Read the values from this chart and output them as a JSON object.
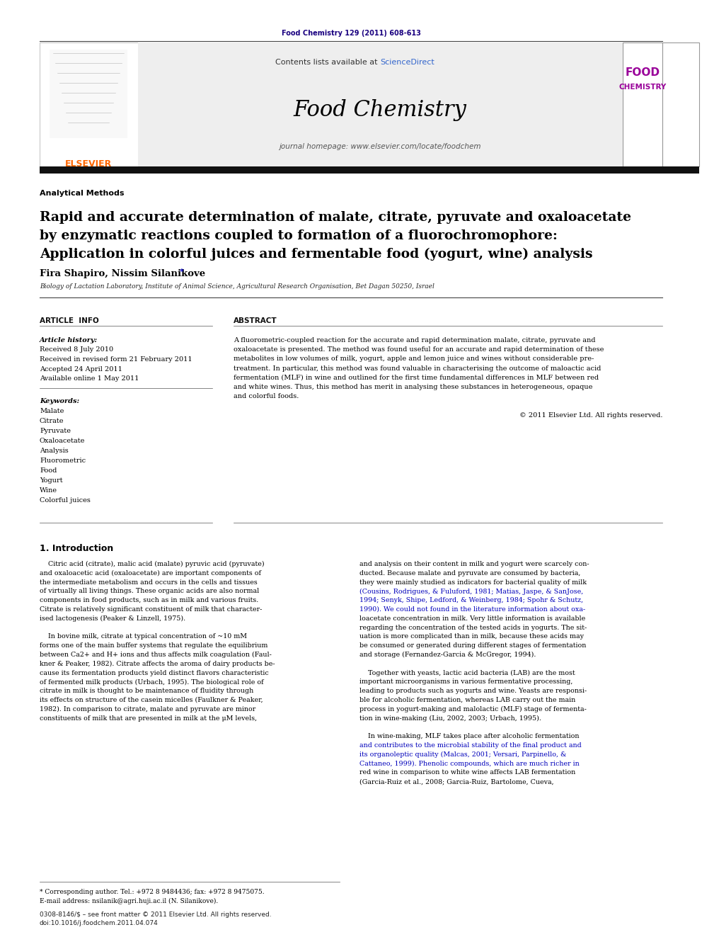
{
  "journal_ref": "Food Chemistry 129 (2011) 608-613",
  "journal_ref_color": "#1a0080",
  "contents_text": "Contents lists available at ",
  "sciencedirect_text": "ScienceDirect",
  "sciencedirect_color": "#3366cc",
  "journal_name": "Food Chemistry",
  "journal_homepage": "journal homepage: www.elsevier.com/locate/foodchem",
  "section_label": "Analytical Methods",
  "article_title_line1": "Rapid and accurate determination of malate, citrate, pyruvate and oxaloacetate",
  "article_title_line2": "by enzymatic reactions coupled to formation of a fluorochromophore:",
  "article_title_line3": "Application in colorful juices and fermentable food (yogurt, wine) analysis",
  "authors": "Fira Shapiro, Nissim Silanikove",
  "author_star": "*",
  "affiliation": "Biology of Lactation Laboratory, Institute of Animal Science, Agricultural Research Organisation, Bet Dagan 50250, Israel",
  "article_info_header": "ARTICLE  INFO",
  "abstract_header": "ABSTRACT",
  "article_history_label": "Article history:",
  "received": "Received 8 July 2010",
  "received_revised": "Received in revised form 21 February 2011",
  "accepted": "Accepted 24 April 2011",
  "available_online": "Available online 1 May 2011",
  "keywords_label": "Keywords:",
  "keywords": [
    "Malate",
    "Citrate",
    "Pyruvate",
    "Oxaloacetate",
    "Analysis",
    "Fluorometric",
    "Food",
    "Yogurt",
    "Wine",
    "Colorful juices"
  ],
  "abstract_lines": [
    "A fluorometric-coupled reaction for the accurate and rapid determination malate, citrate, pyruvate and",
    "oxaloacetate is presented. The method was found useful for an accurate and rapid determination of these",
    "metabolites in low volumes of milk, yogurt, apple and lemon juice and wines without considerable pre-",
    "treatment. In particular, this method was found valuable in characterising the outcome of maloactic acid",
    "fermentation (MLF) in wine and outlined for the first time fundamental differences in MLF between red",
    "and white wines. Thus, this method has merit in analysing these substances in heterogeneous, opaque",
    "and colorful foods."
  ],
  "copyright_text": "© 2011 Elsevier Ltd. All rights reserved.",
  "intro_header": "1. Introduction",
  "intro_col1": [
    "    Citric acid (citrate), malic acid (malate) pyruvic acid (pyruvate)",
    "and oxaloacetic acid (oxaloacetate) are important components of",
    "the intermediate metabolism and occurs in the cells and tissues",
    "of virtually all living things. These organic acids are also normal",
    "components in food products, such as in milk and various fruits.",
    "Citrate is relatively significant constituent of milk that character-",
    "ised lactogenesis (Peaker & Linzell, 1975).",
    "",
    "    In bovine milk, citrate at typical concentration of ~10 mM",
    "forms one of the main buffer systems that regulate the equilibrium",
    "between Ca2+ and H+ ions and thus affects milk coagulation (Faul-",
    "kner & Peaker, 1982). Citrate affects the aroma of dairy products be-",
    "cause its fermentation products yield distinct flavors characteristic",
    "of fermented milk products (Urbach, 1995). The biological role of",
    "citrate in milk is thought to be maintenance of fluidity through",
    "its effects on structure of the casein micelles (Faulkner & Peaker,",
    "1982). In comparison to citrate, malate and pyruvate are minor",
    "constituents of milk that are presented in milk at the μM levels,"
  ],
  "intro_col2": [
    "and analysis on their content in milk and yogurt were scarcely con-",
    "ducted. Because malate and pyruvate are consumed by bacteria,",
    "they were mainly studied as indicators for bacterial quality of milk",
    "(Cousins, Rodrigues, & Fuluford, 1981; Matias, Jaspe, & SanJose,",
    "1994; Senyk, Shipe, Ledford, & Weinberg, 1984; Spohr & Schutz,",
    "1990). We could not found in the literature information about oxa-",
    "loacetate concentration in milk. Very little information is available",
    "regarding the concentration of the tested acids in yogurts. The sit-",
    "uation is more complicated than in milk, because these acids may",
    "be consumed or generated during different stages of fermentation",
    "and storage (Fernandez-Garcia & McGregor, 1994).",
    "",
    "    Together with yeasts, lactic acid bacteria (LAB) are the most",
    "important microorganisms in various fermentative processing,",
    "leading to products such as yogurts and wine. Yeasts are responsi-",
    "ble for alcoholic fermentation, whereas LAB carry out the main",
    "process in yogurt-making and malolactic (MLF) stage of fermenta-",
    "tion in wine-making (Liu, 2002, 2003; Urbach, 1995).",
    "",
    "    In wine-making, MLF takes place after alcoholic fermentation",
    "and contributes to the microbial stability of the final product and",
    "its organoleptic quality (Malcas, 2001; Versari, Parpinello, &",
    "Cattaneo, 1999). Phenolic compounds, which are much richer in",
    "red wine in comparison to white wine affects LAB fermentation",
    "(Garcia-Ruiz et al., 2008; Garcia-Ruiz, Bartolome, Cueva,"
  ],
  "intro_col2_ref_lines": [
    3,
    4,
    5,
    20,
    21,
    22,
    25
  ],
  "footnote_star": "* Corresponding author. Tel.: +972 8 9484436; fax: +972 8 9475075.",
  "footnote_email": "E-mail address: nsilanik@agri.huji.ac.il (N. Silanikove).",
  "issn_text": "0308-8146/$ – see front matter © 2011 Elsevier Ltd. All rights reserved.",
  "doi_text": "doi:10.1016/j.foodchem.2011.04.074",
  "bg_color": "#ffffff",
  "elsevier_orange": "#ff6600",
  "food_purple": "#990099",
  "light_gray_bg": "#eeeeee"
}
